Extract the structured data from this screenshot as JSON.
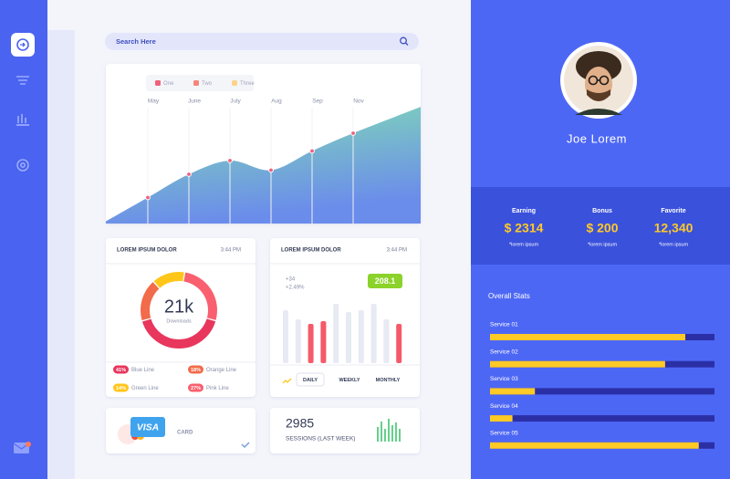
{
  "search": {
    "placeholder": "Search Here"
  },
  "area_chart": {
    "legend": [
      {
        "name": "One",
        "color": "#f0607a"
      },
      {
        "name": "Two",
        "color": "#f4867c"
      },
      {
        "name": "Three",
        "color": "#fbd38d"
      }
    ],
    "categories": [
      "May",
      "June",
      "July",
      "Aug",
      "Sep",
      "Nov"
    ],
    "values": [
      19,
      36,
      46,
      39,
      53,
      66
    ],
    "ylim": [
      0,
      100
    ],
    "colors": [
      "#74dbaa",
      "#5a7fe9"
    ]
  },
  "donut_card": {
    "title": "LOREM IPSUM DOLOR",
    "time": "3:44 PM",
    "center_value": "21k",
    "center_label": "Downloads",
    "values": [
      41,
      18,
      14,
      27
    ],
    "value_labels": [
      "41%",
      "18%",
      "14%",
      "27%"
    ],
    "names": [
      "Blue Line",
      "Orange Line",
      "Green Line",
      "Pink Line"
    ],
    "colors": [
      "#e8365d",
      "#f26b4a",
      "#ffc61a",
      "#f95f6e"
    ]
  },
  "bar_card": {
    "title": "LOREM IPSUM DOLOR",
    "time": "3:44 PM",
    "change": "+34",
    "change_pct": "+2.49%",
    "badge": "208.1",
    "values": [
      58,
      48,
      43,
      46,
      65,
      56,
      58,
      65,
      48,
      43
    ],
    "colors": [
      "#e7eaf2",
      "#e7eaf2",
      "#f55a6a",
      "#f55a6a",
      "#e7eaf2",
      "#e7eaf2",
      "#e7eaf2",
      "#e7eaf2",
      "#e7eaf2",
      "#f55a6a"
    ],
    "tabs": [
      "DAILY",
      "WEEKLY",
      "MONTHLY"
    ]
  },
  "payment_card": {
    "logo": "VISA",
    "label": "CARD"
  },
  "sessions_card": {
    "value": "2985",
    "label": "SESSIONS (LAST WEEK)"
  },
  "profile": {
    "name": "Joe Lorem",
    "stats": [
      {
        "label": "Earning",
        "value": "$ 2314",
        "note": "*lorem ipsum"
      },
      {
        "label": "Bonus",
        "value": "$ 200",
        "note": "*lorem ipsum"
      },
      {
        "label": "Favorite",
        "value": "12,340",
        "note": "*lorem ipsum"
      }
    ]
  },
  "overall_stats": {
    "title": "Overall Stats",
    "names": [
      "Service 01",
      "Service 02",
      "Service 03",
      "Service 04",
      "Service 05"
    ],
    "values": [
      87,
      78,
      20,
      10,
      93
    ],
    "xlim": [
      0,
      100
    ]
  }
}
